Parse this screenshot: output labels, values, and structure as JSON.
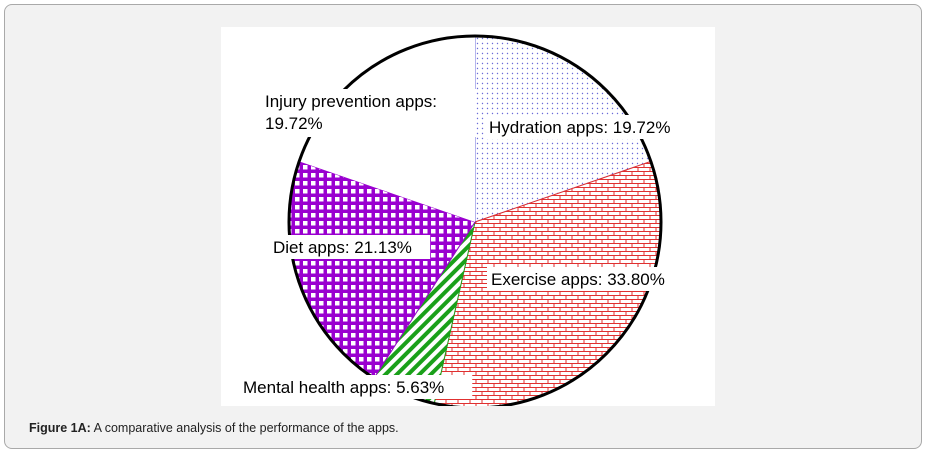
{
  "figure": {
    "caption_label": "Figure 1A:",
    "caption_text": " A comparative analysis of the performance of the apps."
  },
  "chart_data": {
    "type": "pie",
    "title": "",
    "slices": [
      {
        "label_line1": "Hydration apps: 19.72%",
        "label_line2": "",
        "name": "Hydration apps",
        "value": 19.72,
        "color": "#6a6ad8",
        "pattern": "dots"
      },
      {
        "label_line1": "Exercise apps: 33.80%",
        "label_line2": "",
        "name": "Exercise apps",
        "value": 33.8,
        "color": "#e03030",
        "pattern": "bricks"
      },
      {
        "label_line1": "Mental health apps: 5.63%",
        "label_line2": "",
        "name": "Mental health apps",
        "value": 5.63,
        "color": "#1aa01a",
        "pattern": "diagonal"
      },
      {
        "label_line1": "Diet apps: 21.13%",
        "label_line2": "",
        "name": "Diet apps",
        "value": 21.13,
        "color": "#9a00d0",
        "pattern": "grid"
      },
      {
        "label_line1": "Injury prevention apps:",
        "label_line2": "19.72%",
        "name": "Injury prevention apps",
        "value": 19.72,
        "color": "#ffffff",
        "pattern": "none"
      }
    ]
  }
}
